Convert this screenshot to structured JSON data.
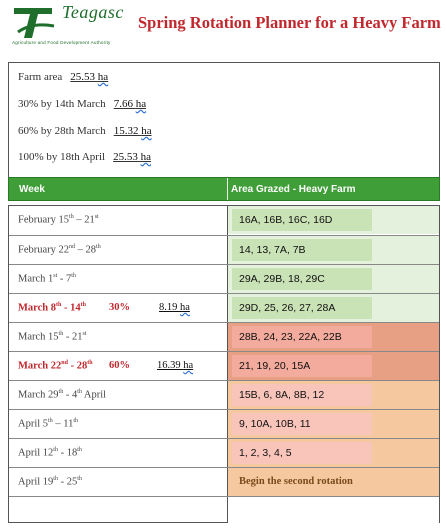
{
  "header": {
    "logo_text": "Teagasc",
    "logo_tagline": "Agriculture and Food Development Authority",
    "title": "Spring Rotation Planner for a Heavy Farm"
  },
  "summary": [
    {
      "label": "Farm area",
      "value": "25.53",
      "unit": "ha"
    },
    {
      "label": "30% by 14th March",
      "value": "7.66",
      "unit": "ha"
    },
    {
      "label": "60% by 28th March",
      "value": "15.32",
      "unit": "ha"
    },
    {
      "label": "100% by 18th April",
      "value": "25.53",
      "unit": "ha"
    }
  ],
  "table": {
    "col_week": "Week",
    "col_area": "Area Grazed - Heavy Farm",
    "rows": [
      {
        "a": "February 15",
        "as": "th",
        "b": " – 21",
        "bs": "st",
        "pct": "",
        "amt": "",
        "unit": "",
        "paddocks": "16A, 16B, 16C, 16D",
        "bold": false,
        "color": "#e4f1dc",
        "inner": "#c9e2b6"
      },
      {
        "a": "February 22",
        "as": "nd",
        "b": " – 28",
        "bs": "th",
        "pct": "",
        "amt": "",
        "unit": "",
        "paddocks": "14, 13, 7A, 7B",
        "bold": false,
        "color": "#e4f1dc",
        "inner": "#c9e2b6"
      },
      {
        "a": "March 1",
        "as": "st",
        "b": " - 7",
        "bs": "th",
        "pct": "",
        "amt": "",
        "unit": "",
        "paddocks": "29A, 29B, 18, 29C",
        "bold": false,
        "color": "#e4f1dc",
        "inner": "#c9e2b6"
      },
      {
        "a": "March 8",
        "as": "th",
        "b": " - 14",
        "bs": "th",
        "pct": "30%",
        "amt": "8.19",
        "unit": "ha",
        "paddocks": "29D, 25, 26, 27, 28A",
        "bold": true,
        "color": "#e4f1dc",
        "inner": "#c9e2b6"
      },
      {
        "a": "March 15",
        "as": "th",
        "b": " - 21",
        "bs": "st",
        "pct": "",
        "amt": "",
        "unit": "",
        "paddocks": "28B, 24, 23, 22A, 22B",
        "bold": false,
        "color": "#e8a085",
        "inner": "#f3ab9d"
      },
      {
        "a": "March 22",
        "as": "nd",
        "b": " - 28",
        "bs": "th",
        "pct": "60%",
        "amt": "16.39",
        "unit": "ha",
        "paddocks": "21, 19, 20, 15A",
        "bold": true,
        "color": "#e8a085",
        "inner": "#f3ab9d"
      },
      {
        "a": "March 29",
        "as": "th",
        "b": " - 4",
        "bs": "th",
        "c": " April",
        "pct": "",
        "amt": "",
        "unit": "",
        "paddocks": "15B, 6, 8A, 8B, 12",
        "bold": false,
        "color": "#f6c8a0",
        "inner": "#f9c5bb"
      },
      {
        "a": "April 5",
        "as": "th",
        "b": " – 11",
        "bs": "th",
        "pct": "",
        "amt": "",
        "unit": "",
        "paddocks": "9, 10A, 10B, 11",
        "bold": false,
        "color": "#f6c8a0",
        "inner": "#f9c5bb"
      },
      {
        "a": "April 12",
        "as": "th",
        "b": " - 18",
        "bs": "th",
        "pct": "",
        "amt": "",
        "unit": "",
        "paddocks": "1, 2, 3, 4, 5",
        "bold": false,
        "color": "#f6c8a0",
        "inner": "#f9c5bb"
      },
      {
        "a": "April 19",
        "as": "th",
        "b": " - 25",
        "bs": "th",
        "pct": "",
        "amt": "",
        "unit": "",
        "paddocks": "Begin the second rotation",
        "bold": false,
        "pbold": true,
        "color": "#f6c8a0",
        "inner": "#f6c8a0"
      },
      {
        "a": "",
        "as": "",
        "b": "",
        "bs": "",
        "pct": "",
        "amt": "",
        "unit": "",
        "paddocks": "",
        "bold": false,
        "color": "#ffffff",
        "inner": "#ffffff"
      }
    ]
  }
}
